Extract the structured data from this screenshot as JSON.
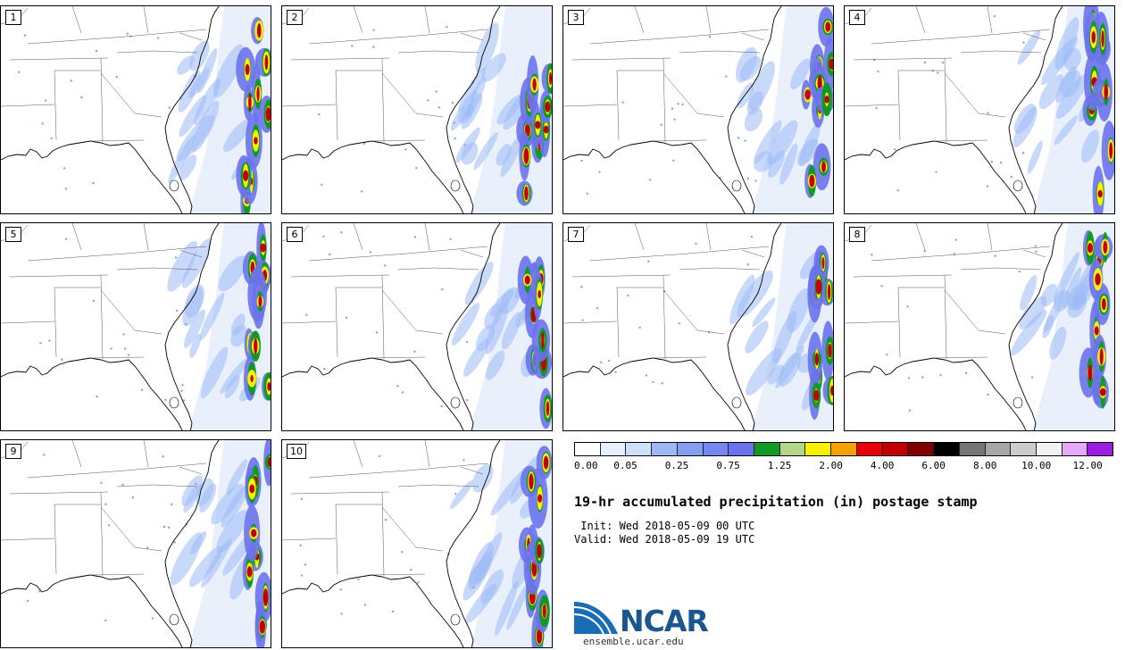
{
  "panels": [
    {
      "label": "1"
    },
    {
      "label": "2"
    },
    {
      "label": "3"
    },
    {
      "label": "4"
    },
    {
      "label": "5"
    },
    {
      "label": "6"
    },
    {
      "label": "7"
    },
    {
      "label": "8"
    },
    {
      "label": "9"
    },
    {
      "label": "10"
    }
  ],
  "colorbar": {
    "colors": [
      "#ffffff",
      "#e6f0ff",
      "#cfdff9",
      "#9cb9f5",
      "#829ff2",
      "#7588ef",
      "#6a73ec",
      "#0e9a25",
      "#b5d68a",
      "#f6f200",
      "#f7a100",
      "#e90006",
      "#c20004",
      "#820000",
      "#000000",
      "#757575",
      "#a6a6a6",
      "#cccccc",
      "#f2f2f2",
      "#e5aaf7",
      "#9a1fe0"
    ],
    "labels": [
      "0.00",
      "0.05",
      "0.25",
      "0.75",
      "1.25",
      "2.00",
      "4.00",
      "6.00",
      "8.00",
      "10.00",
      "12.00"
    ]
  },
  "title": "19-hr accumulated precipitation (in) postage stamp",
  "init": " Init: Wed 2018-05-09 00 UTC",
  "valid": "Valid: Wed 2018-05-09 19 UTC",
  "logo_text": "NCAR",
  "site": "ensemble.ucar.edu"
}
